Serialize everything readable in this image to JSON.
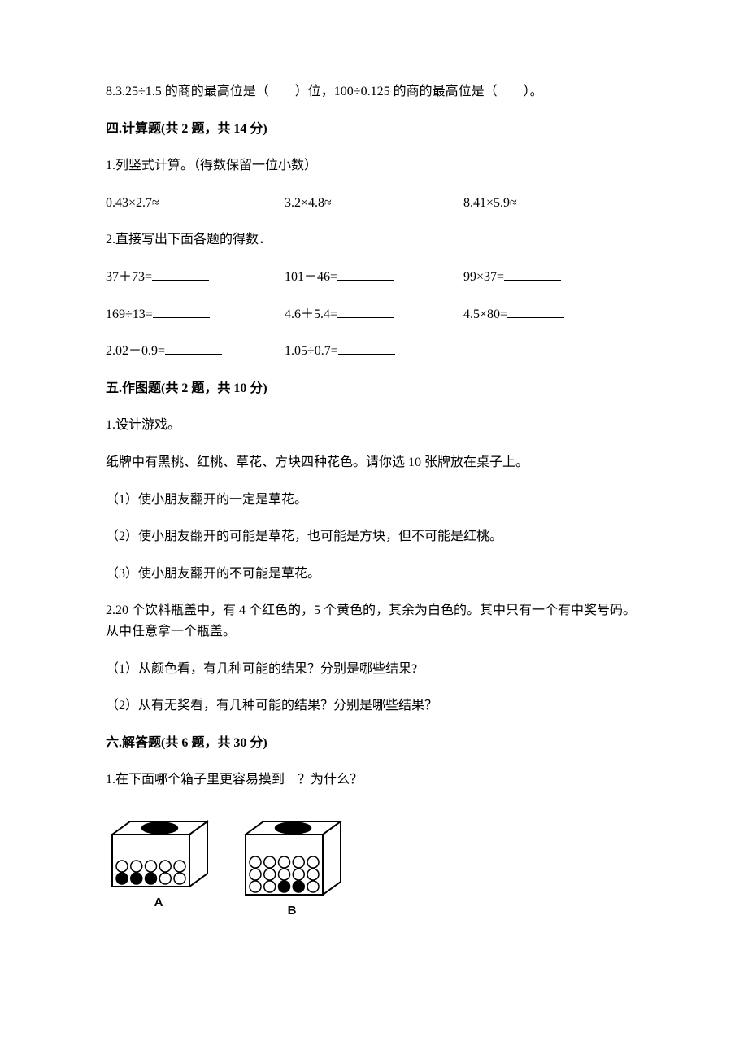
{
  "q8": {
    "text": "8.3.25÷1.5 的商的最高位是（　　）位，100÷0.125 的商的最高位是（　　）。"
  },
  "sec4": {
    "heading": "四.计算题(共 2 题，共 14 分)",
    "q1": {
      "prompt": "1.列竖式计算。（得数保留一位小数）",
      "eq1": "0.43×2.7≈",
      "eq2": "3.2×4.8≈",
      "eq3": "8.41×5.9≈"
    },
    "q2": {
      "prompt": "2.直接写出下面各题的得数．",
      "eq1": "37＋73=",
      "eq2": "101－46=",
      "eq3": "99×37=",
      "eq4": "169÷13=",
      "eq5": "4.6＋5.4=",
      "eq6": "4.5×80=",
      "eq7": "2.02－0.9=",
      "eq8": "1.05÷0.7="
    }
  },
  "sec5": {
    "heading": "五.作图题(共 2 题，共 10 分)",
    "q1": {
      "prompt": "1.设计游戏。",
      "intro": "纸牌中有黑桃、红桃、草花、方块四种花色。请你选 10 张牌放在桌子上。",
      "sub1": "（1）使小朋友翻开的一定是草花。",
      "sub2": "（2）使小朋友翻开的可能是草花，也可能是方块，但不可能是红桃。",
      "sub3": "（3）使小朋友翻开的不可能是草花。"
    },
    "q2": {
      "prompt": "2.20 个饮料瓶盖中，有 4 个红色的，5 个黄色的，其余为白色的。其中只有一个有中奖号码。从中任意拿一个瓶盖。",
      "sub1": "（1）从颜色看，有几种可能的结果？分别是哪些结果?",
      "sub2": "（2）从有无奖看，有几种可能的结果？分别是哪些结果？"
    }
  },
  "sec6": {
    "heading": "六.解答题(共 6 题，共 30 分)",
    "q1": {
      "prompt": "1.在下面哪个箱子里更容易摸到　？为什么？",
      "labelA": "A",
      "labelB": "B"
    }
  },
  "figure": {
    "boxA": {
      "stroke": "#000000",
      "fill": "#ffffff",
      "rows": [
        [
          "white",
          "white",
          "white",
          "white",
          "white"
        ],
        [
          "black",
          "black",
          "black",
          "white",
          "white"
        ]
      ]
    },
    "boxB": {
      "stroke": "#000000",
      "fill": "#ffffff",
      "rows": [
        [
          "white",
          "white",
          "white",
          "white",
          "white"
        ],
        [
          "white",
          "white",
          "white",
          "white",
          "white"
        ],
        [
          "white",
          "white",
          "black",
          "black",
          "white"
        ]
      ]
    },
    "circle_radius": 7,
    "circle_stroke": "#000000",
    "circle_stroke_width": 1.5,
    "white_fill": "#ffffff",
    "black_fill": "#000000"
  }
}
